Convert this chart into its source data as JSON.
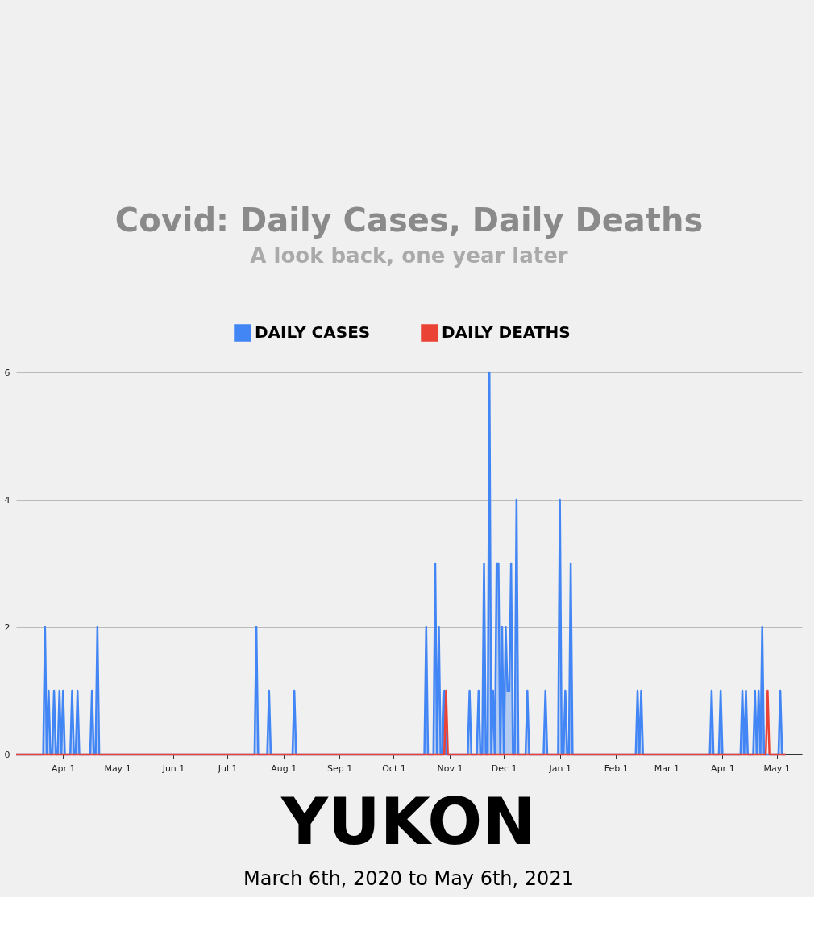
{
  "chart_data": {
    "type": "area",
    "title": "Covid: Daily Cases, Daily Deaths",
    "subtitle": "A look back, one year later",
    "xlim": [
      "2020-03-06",
      "2021-05-15"
    ],
    "xticks": [
      {
        "value": "2020-04-01",
        "label": "Apr 1"
      },
      {
        "value": "2020-05-01",
        "label": "May 1"
      },
      {
        "value": "2020-06-01",
        "label": "Jun 1"
      },
      {
        "value": "2020-07-01",
        "label": "Jul 1"
      },
      {
        "value": "2020-08-01",
        "label": "Aug 1"
      },
      {
        "value": "2020-09-01",
        "label": "Sep 1"
      },
      {
        "value": "2020-10-01",
        "label": "Oct 1"
      },
      {
        "value": "2020-11-01",
        "label": "Nov 1"
      },
      {
        "value": "2020-12-01",
        "label": "Dec 1"
      },
      {
        "value": "2021-01-01",
        "label": "Jan 1"
      },
      {
        "value": "2021-02-01",
        "label": "Feb 1"
      },
      {
        "value": "2021-03-01",
        "label": "Mar 1"
      },
      {
        "value": "2021-04-01",
        "label": "Apr 1"
      },
      {
        "value": "2021-05-01",
        "label": "May 1"
      }
    ],
    "ylim": [
      0,
      6
    ],
    "yticks": [
      0,
      2,
      4,
      6
    ],
    "grid": "y",
    "legend": "top",
    "series": [
      {
        "name": "DAILY CASES",
        "color": "#4285f4",
        "x": [
          "2020-03-06",
          "2020-03-21",
          "2020-03-22",
          "2020-03-23",
          "2020-03-24",
          "2020-03-25",
          "2020-03-26",
          "2020-03-27",
          "2020-03-28",
          "2020-03-29",
          "2020-03-30",
          "2020-03-31",
          "2020-04-01",
          "2020-04-02",
          "2020-04-05",
          "2020-04-06",
          "2020-04-07",
          "2020-04-08",
          "2020-04-09",
          "2020-04-10",
          "2020-04-16",
          "2020-04-17",
          "2020-04-18",
          "2020-04-19",
          "2020-04-20",
          "2020-04-21",
          "2020-07-16",
          "2020-07-17",
          "2020-07-18",
          "2020-07-23",
          "2020-07-24",
          "2020-07-25",
          "2020-08-06",
          "2020-08-07",
          "2020-08-08",
          "2020-10-18",
          "2020-10-19",
          "2020-10-20",
          "2020-10-23",
          "2020-10-24",
          "2020-10-25",
          "2020-10-26",
          "2020-10-27",
          "2020-10-28",
          "2020-10-29",
          "2020-10-30",
          "2020-11-11",
          "2020-11-12",
          "2020-11-13",
          "2020-11-16",
          "2020-11-17",
          "2020-11-18",
          "2020-11-19",
          "2020-11-20",
          "2020-11-21",
          "2020-11-22",
          "2020-11-23",
          "2020-11-24",
          "2020-11-25",
          "2020-11-26",
          "2020-11-27",
          "2020-11-28",
          "2020-11-29",
          "2020-11-30",
          "2020-12-01",
          "2020-12-02",
          "2020-12-03",
          "2020-12-04",
          "2020-12-05",
          "2020-12-06",
          "2020-12-07",
          "2020-12-08",
          "2020-12-09",
          "2020-12-13",
          "2020-12-14",
          "2020-12-15",
          "2020-12-23",
          "2020-12-24",
          "2020-12-25",
          "2020-12-31",
          "2021-01-01",
          "2021-01-02",
          "2021-01-03",
          "2021-01-04",
          "2021-01-05",
          "2021-01-06",
          "2021-01-07",
          "2021-01-08",
          "2021-02-12",
          "2021-02-13",
          "2021-02-14",
          "2021-02-15",
          "2021-02-16",
          "2021-03-25",
          "2021-03-26",
          "2021-03-27",
          "2021-03-30",
          "2021-03-31",
          "2021-04-01",
          "2021-04-11",
          "2021-04-12",
          "2021-04-13",
          "2021-04-14",
          "2021-04-15",
          "2021-04-18",
          "2021-04-19",
          "2021-04-20",
          "2021-04-21",
          "2021-04-22",
          "2021-04-23",
          "2021-04-24",
          "2021-05-02",
          "2021-05-03",
          "2021-05-04",
          "2021-05-06"
        ],
        "values": [
          0,
          0,
          2,
          0,
          1,
          0,
          0,
          1,
          0,
          0,
          1,
          0,
          1,
          0,
          0,
          1,
          0,
          0,
          1,
          0,
          0,
          1,
          0,
          0,
          2,
          0,
          0,
          2,
          0,
          0,
          1,
          0,
          0,
          1,
          0,
          0,
          2,
          0,
          0,
          3,
          0,
          2,
          0,
          0,
          1,
          0,
          0,
          1,
          0,
          0,
          1,
          0,
          0,
          3,
          0,
          0,
          6,
          0,
          1,
          0,
          3,
          3,
          0,
          2,
          0,
          2,
          1,
          1,
          3,
          0,
          0,
          4,
          0,
          0,
          1,
          0,
          0,
          1,
          0,
          0,
          4,
          0,
          0,
          1,
          0,
          0,
          3,
          0,
          0,
          1,
          0,
          1,
          0,
          0,
          1,
          0,
          0,
          1,
          0,
          0,
          1,
          0,
          1,
          0,
          0,
          1,
          0,
          1,
          0,
          2,
          0,
          0,
          1,
          0,
          0
        ]
      },
      {
        "name": "DAILY DEATHS",
        "type": "line",
        "color": "#ea4335",
        "x": [
          "2020-03-06",
          "2020-10-29",
          "2020-10-30",
          "2020-10-31",
          "2021-04-25",
          "2021-04-26",
          "2021-04-27",
          "2021-05-06"
        ],
        "values": [
          0,
          0,
          1,
          0,
          0,
          1,
          0,
          0
        ]
      }
    ],
    "annotations": [
      "YUKON",
      "March 6th, 2020 to May 6th, 2021"
    ]
  }
}
